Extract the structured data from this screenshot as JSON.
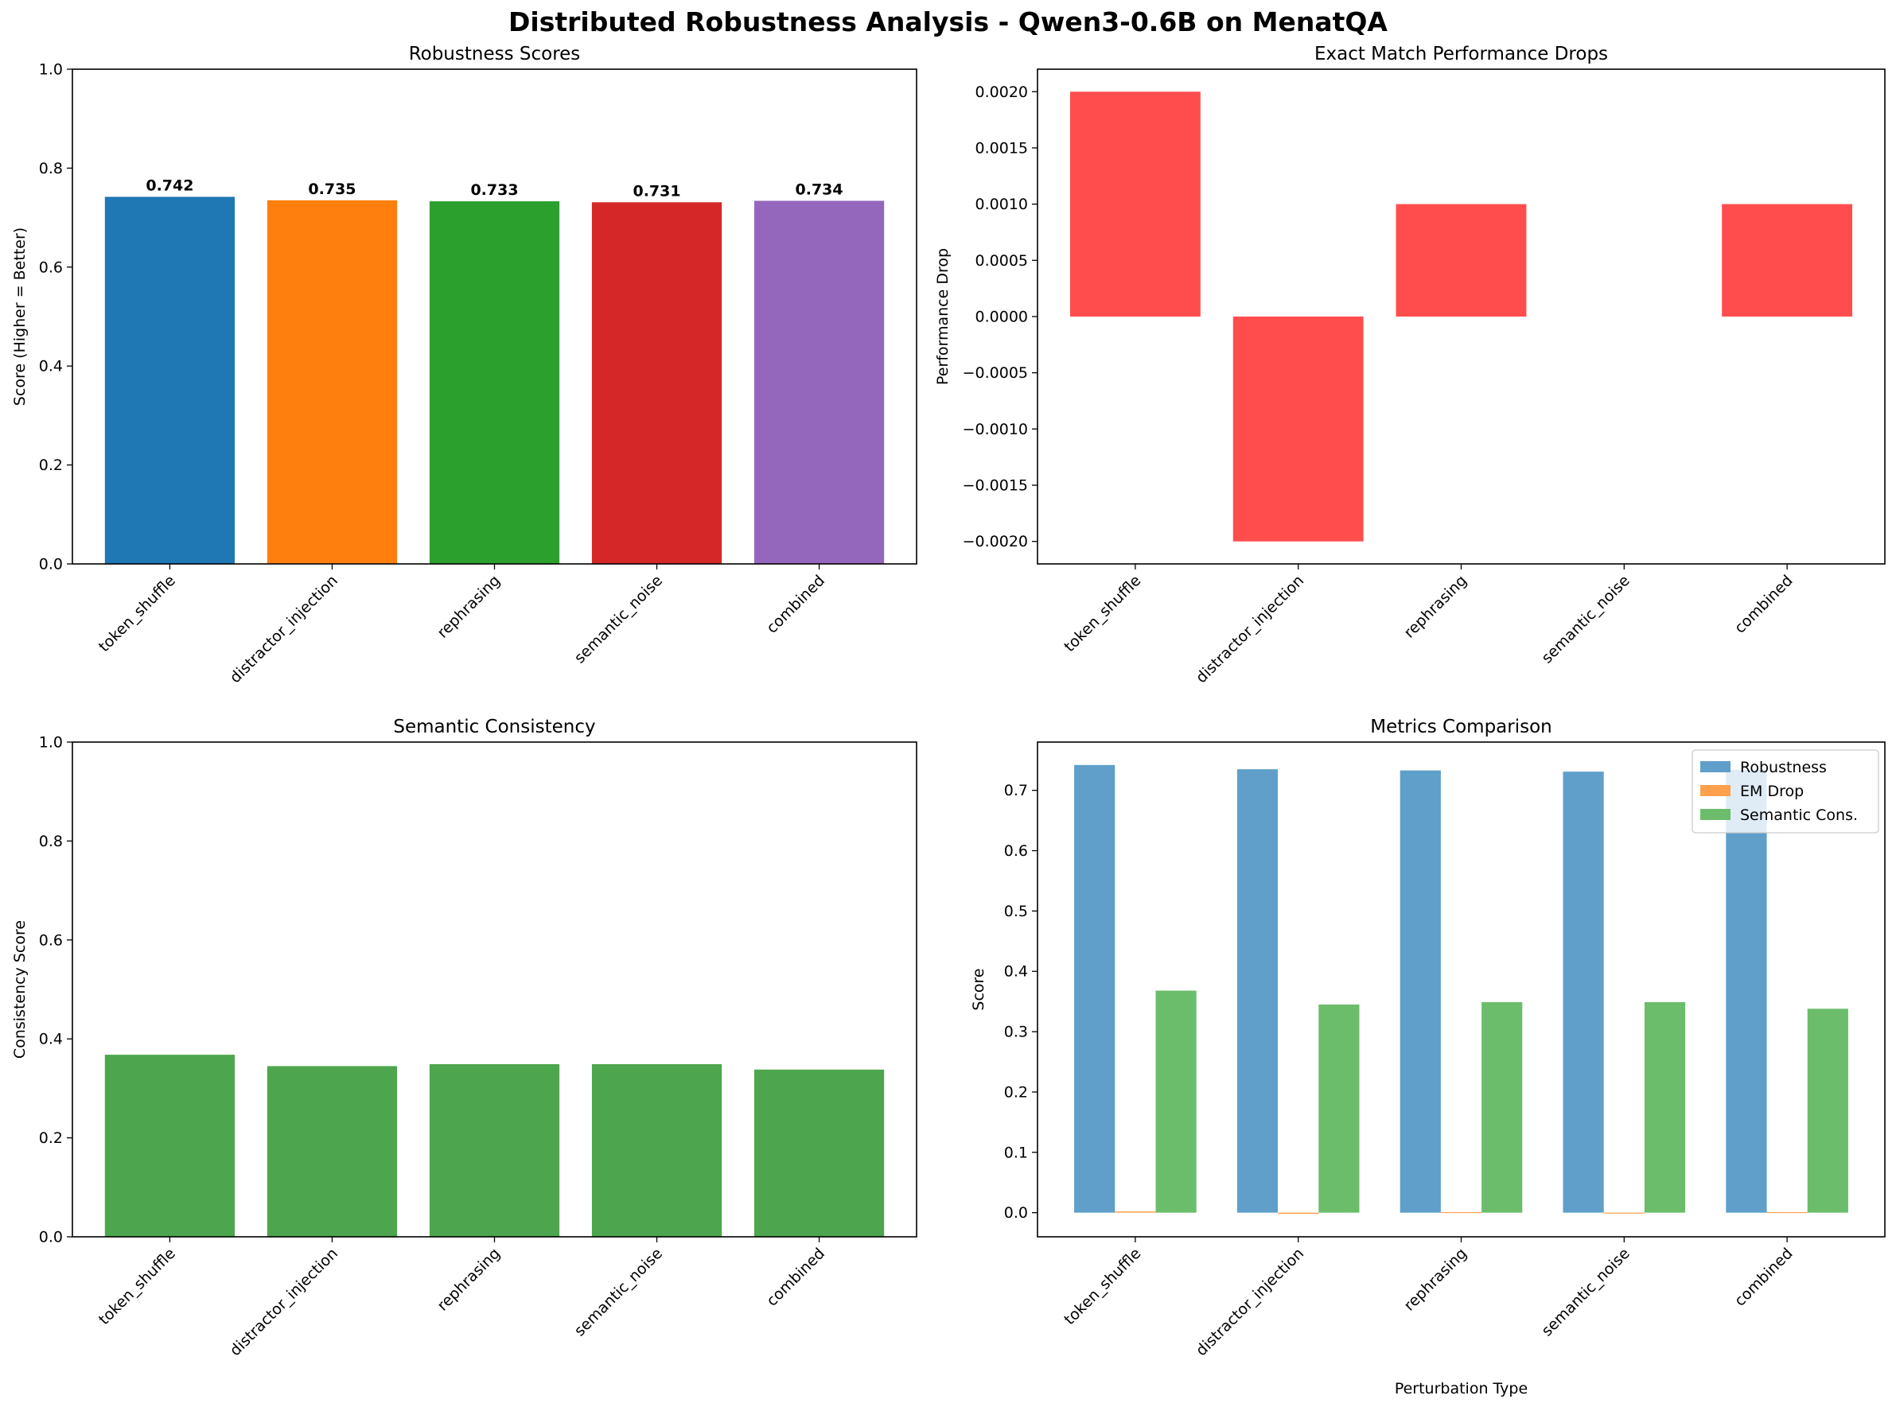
{
  "suptitle": "Distributed Robustness Analysis - Qwen3-0.6B on MenatQA",
  "categories": [
    "token_shuffle",
    "distractor_injection",
    "rephrasing",
    "semantic_noise",
    "combined"
  ],
  "chart_data": [
    {
      "id": "robustness",
      "type": "bar",
      "title": "Robustness Scores",
      "xlabel": "",
      "ylabel": "Score (Higher = Better)",
      "ylim": [
        0,
        1.0
      ],
      "yticks": [
        0.0,
        0.2,
        0.4,
        0.6,
        0.8,
        1.0
      ],
      "ytick_labels": [
        "0.0",
        "0.2",
        "0.4",
        "0.6",
        "0.8",
        "1.0"
      ],
      "values": [
        0.742,
        0.735,
        0.733,
        0.731,
        0.734
      ],
      "value_labels": [
        "0.742",
        "0.735",
        "0.733",
        "0.731",
        "0.734"
      ],
      "colors": [
        "#1f77b4",
        "#ff7f0e",
        "#2ca02c",
        "#d62728",
        "#9467bd"
      ]
    },
    {
      "id": "emdrop",
      "type": "bar",
      "title": "Exact Match Performance Drops",
      "xlabel": "",
      "ylabel": "Performance Drop",
      "ylim": [
        -0.0022,
        0.0022
      ],
      "yticks": [
        -0.002,
        -0.0015,
        -0.001,
        -0.0005,
        0.0,
        0.0005,
        0.001,
        0.0015,
        0.002
      ],
      "ytick_labels": [
        "−0.0020",
        "−0.0015",
        "−0.0010",
        "−0.0005",
        "0.0000",
        "0.0005",
        "0.0010",
        "0.0015",
        "0.0020"
      ],
      "values": [
        0.002,
        -0.002,
        0.001,
        0.0,
        0.001
      ],
      "colors": [
        "#ff4d4d"
      ]
    },
    {
      "id": "semantic",
      "type": "bar",
      "title": "Semantic Consistency",
      "xlabel": "",
      "ylabel": "Consistency Score",
      "ylim": [
        0,
        1.0
      ],
      "yticks": [
        0.0,
        0.2,
        0.4,
        0.6,
        0.8,
        1.0
      ],
      "ytick_labels": [
        "0.0",
        "0.2",
        "0.4",
        "0.6",
        "0.8",
        "1.0"
      ],
      "values": [
        0.368,
        0.345,
        0.349,
        0.349,
        0.338
      ],
      "colors": [
        "#4da64d"
      ]
    },
    {
      "id": "metrics",
      "type": "grouped-bar",
      "title": "Metrics Comparison",
      "xlabel": "Perturbation Type",
      "ylabel": "Score",
      "ylim": [
        -0.04,
        0.78
      ],
      "yticks": [
        0.0,
        0.1,
        0.2,
        0.3,
        0.4,
        0.5,
        0.6,
        0.7
      ],
      "ytick_labels": [
        "0.0",
        "0.1",
        "0.2",
        "0.3",
        "0.4",
        "0.5",
        "0.6",
        "0.7"
      ],
      "legend_position": "top-right",
      "series": [
        {
          "name": "Robustness",
          "values": [
            0.742,
            0.735,
            0.733,
            0.731,
            0.734
          ],
          "color": "#5f9fca"
        },
        {
          "name": "EM Drop",
          "values": [
            0.002,
            -0.002,
            0.001,
            0.0,
            0.001
          ],
          "color": "#ffa04d"
        },
        {
          "name": "Semantic Cons.",
          "values": [
            0.368,
            0.345,
            0.349,
            0.349,
            0.338
          ],
          "color": "#6bbd6b"
        }
      ]
    }
  ]
}
